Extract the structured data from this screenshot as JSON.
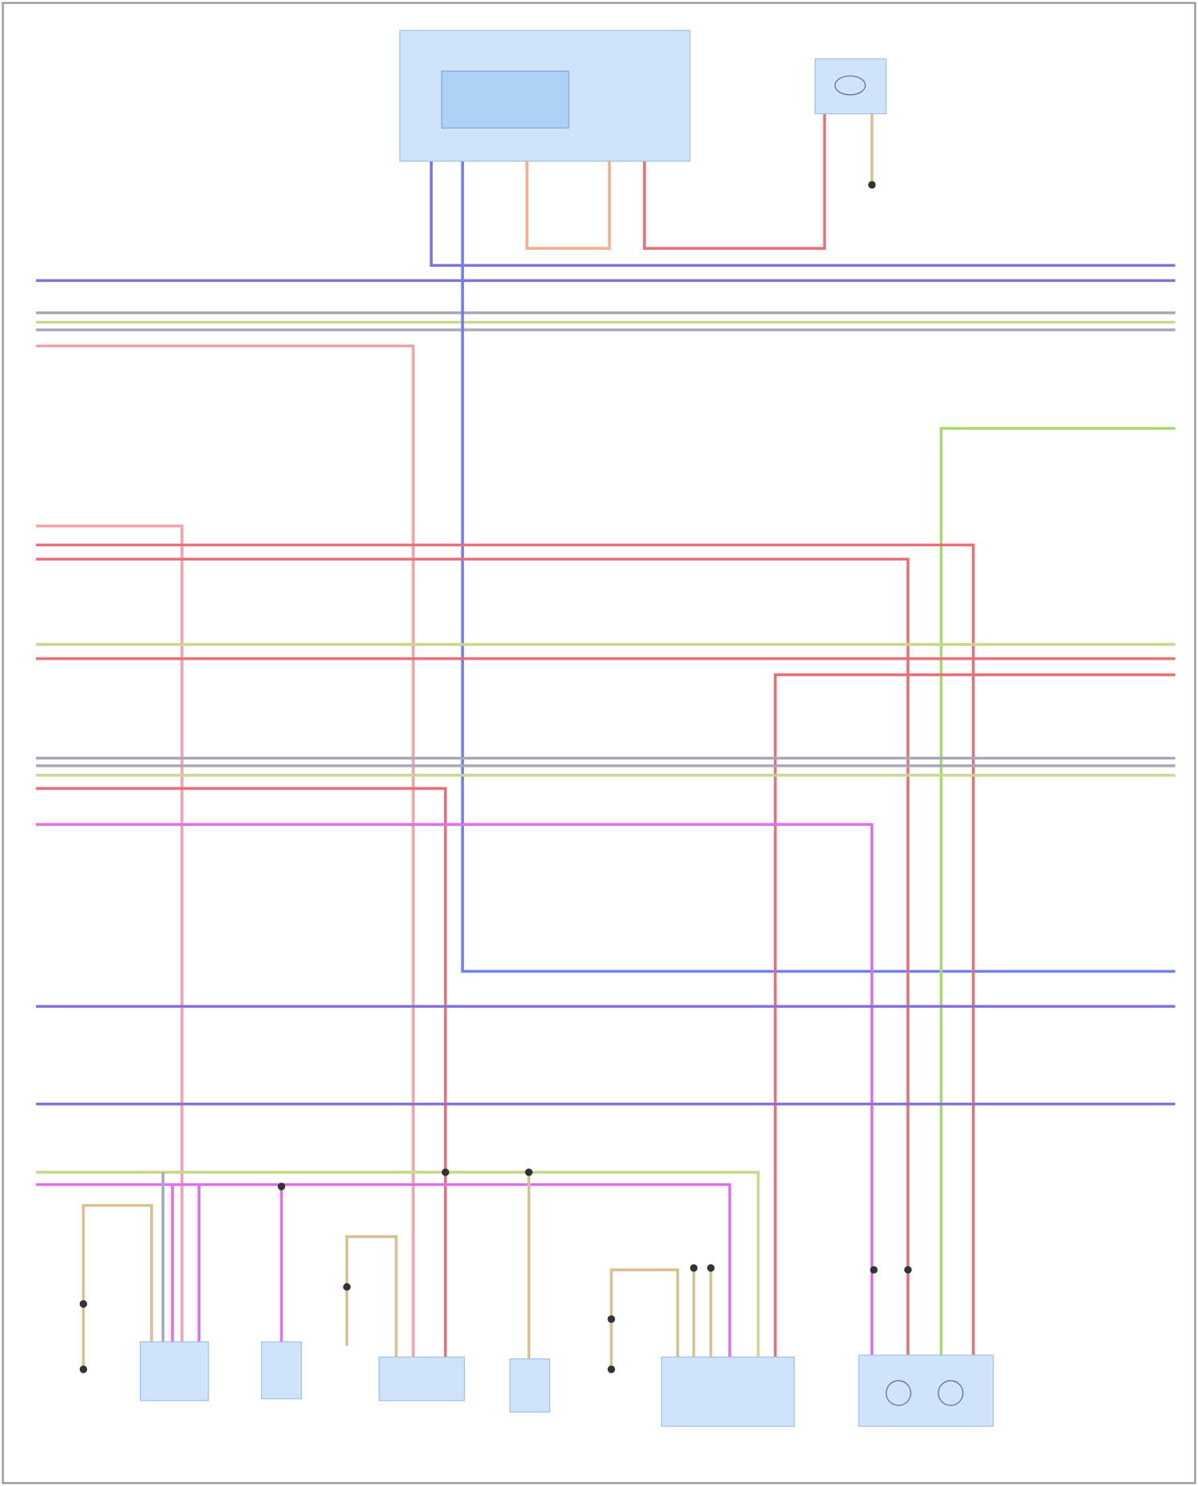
{
  "diagram": {
    "type": "wiring-diagram",
    "colors": {
      "purple": "#8a6fd6",
      "blue": "#6f7ff0",
      "red": "#e8707a",
      "light_red": "#f2a2a8",
      "orange": "#f0b090",
      "green": "#a8d870",
      "yellow_green": "#c8d890",
      "gray": "#a8a8b8",
      "magenta": "#e070e8",
      "tan": "#d8c090",
      "component_fill": "#cfe4fb",
      "component_inner_fill": "#aed2f6",
      "frame": "#999999"
    },
    "components": [
      {
        "id": "main-module"
      },
      {
        "id": "top-right-sensor"
      },
      {
        "id": "bottom-component-1"
      },
      {
        "id": "bottom-component-2"
      },
      {
        "id": "bottom-component-3"
      },
      {
        "id": "bottom-component-4"
      },
      {
        "id": "bottom-component-5"
      },
      {
        "id": "bottom-component-6"
      }
    ]
  }
}
